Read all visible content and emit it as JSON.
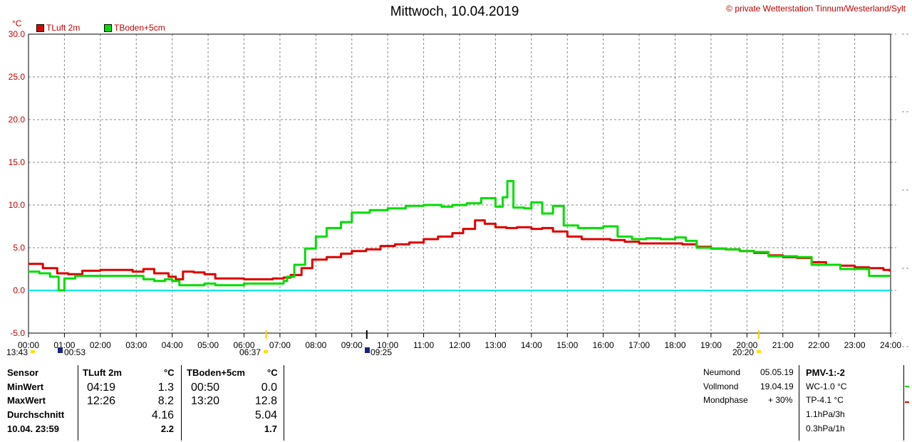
{
  "title": "Mittwoch, 10.04.2019",
  "copyright": "© private Wetterstation Tinnum/Westerland/Sylt",
  "unit": "°C",
  "legend": [
    {
      "name": "TLuft 2m",
      "color": "#dd0000"
    },
    {
      "name": "TBoden+5cm",
      "color": "#00dd00"
    }
  ],
  "chart_data": {
    "type": "line",
    "title": "Mittwoch, 10.04.2019",
    "ylabel": "°C",
    "ylim": [
      -5.0,
      30.0
    ],
    "yticks": [
      "30.0",
      "25.0",
      "20.0",
      "15.0",
      "10.0",
      "5.0",
      "0.0",
      "-5.0"
    ],
    "xlim": [
      0,
      24
    ],
    "xticks": [
      "00:00",
      "01:00",
      "02:00",
      "03:00",
      "04:00",
      "05:00",
      "06:00",
      "07:00",
      "08:00",
      "09:00",
      "10:00",
      "11:00",
      "12:00",
      "13:00",
      "14:00",
      "15:00",
      "16:00",
      "17:00",
      "18:00",
      "19:00",
      "20:00",
      "21:00",
      "22:00",
      "23:00",
      "24:00"
    ],
    "grid": true,
    "reference_line": {
      "y": 0.0,
      "color": "#00e5e5"
    },
    "series": [
      {
        "name": "TLuft 2m",
        "color": "#dd0000",
        "points": [
          [
            0,
            3.1
          ],
          [
            0.4,
            2.6
          ],
          [
            0.8,
            2.0
          ],
          [
            1.1,
            1.9
          ],
          [
            1.5,
            2.3
          ],
          [
            2.0,
            2.4
          ],
          [
            2.5,
            2.4
          ],
          [
            2.9,
            2.2
          ],
          [
            3.2,
            2.5
          ],
          [
            3.5,
            2.0
          ],
          [
            3.9,
            1.6
          ],
          [
            4.1,
            1.3
          ],
          [
            4.3,
            2.2
          ],
          [
            4.6,
            2.1
          ],
          [
            4.9,
            1.9
          ],
          [
            5.2,
            1.4
          ],
          [
            5.6,
            1.4
          ],
          [
            6.0,
            1.3
          ],
          [
            6.4,
            1.3
          ],
          [
            6.8,
            1.4
          ],
          [
            7.1,
            1.5
          ],
          [
            7.3,
            1.8
          ],
          [
            7.6,
            2.6
          ],
          [
            7.9,
            3.6
          ],
          [
            8.3,
            3.9
          ],
          [
            8.7,
            4.3
          ],
          [
            9.0,
            4.6
          ],
          [
            9.4,
            4.8
          ],
          [
            9.8,
            5.2
          ],
          [
            10.2,
            5.4
          ],
          [
            10.6,
            5.6
          ],
          [
            11.0,
            6.0
          ],
          [
            11.4,
            6.3
          ],
          [
            11.8,
            6.7
          ],
          [
            12.1,
            7.2
          ],
          [
            12.43,
            8.2
          ],
          [
            12.7,
            7.8
          ],
          [
            13.0,
            7.4
          ],
          [
            13.3,
            7.3
          ],
          [
            13.6,
            7.4
          ],
          [
            14.0,
            7.2
          ],
          [
            14.3,
            7.3
          ],
          [
            14.6,
            6.9
          ],
          [
            15.0,
            6.3
          ],
          [
            15.4,
            6.0
          ],
          [
            15.8,
            6.0
          ],
          [
            16.2,
            5.9
          ],
          [
            16.6,
            5.7
          ],
          [
            17.0,
            5.5
          ],
          [
            17.4,
            5.5
          ],
          [
            17.8,
            5.5
          ],
          [
            18.2,
            5.4
          ],
          [
            18.6,
            5.1
          ],
          [
            19.0,
            4.9
          ],
          [
            19.4,
            4.8
          ],
          [
            19.8,
            4.6
          ],
          [
            20.2,
            4.4
          ],
          [
            20.6,
            4.1
          ],
          [
            21.0,
            3.9
          ],
          [
            21.4,
            3.8
          ],
          [
            21.8,
            3.3
          ],
          [
            22.2,
            3.0
          ],
          [
            22.6,
            2.9
          ],
          [
            23.0,
            2.7
          ],
          [
            23.4,
            2.6
          ],
          [
            23.8,
            2.4
          ],
          [
            23.98,
            2.2
          ]
        ]
      },
      {
        "name": "TBoden+5cm",
        "color": "#00dd00",
        "points": [
          [
            0,
            2.2
          ],
          [
            0.3,
            2.0
          ],
          [
            0.6,
            1.6
          ],
          [
            0.84,
            0.0
          ],
          [
            1.0,
            1.4
          ],
          [
            1.3,
            1.7
          ],
          [
            1.7,
            1.7
          ],
          [
            2.2,
            1.7
          ],
          [
            2.7,
            1.7
          ],
          [
            3.0,
            1.7
          ],
          [
            3.2,
            1.3
          ],
          [
            3.5,
            1.1
          ],
          [
            3.8,
            1.3
          ],
          [
            4.0,
            1.1
          ],
          [
            4.2,
            0.6
          ],
          [
            4.6,
            0.6
          ],
          [
            4.9,
            0.8
          ],
          [
            5.2,
            0.6
          ],
          [
            5.6,
            0.6
          ],
          [
            6.0,
            0.8
          ],
          [
            6.4,
            0.8
          ],
          [
            6.8,
            0.8
          ],
          [
            7.1,
            1.1
          ],
          [
            7.2,
            1.6
          ],
          [
            7.4,
            3.0
          ],
          [
            7.7,
            4.9
          ],
          [
            8.0,
            6.3
          ],
          [
            8.3,
            7.3
          ],
          [
            8.7,
            8.0
          ],
          [
            9.0,
            9.1
          ],
          [
            9.5,
            9.4
          ],
          [
            10.0,
            9.6
          ],
          [
            10.5,
            9.9
          ],
          [
            11.0,
            10.0
          ],
          [
            11.5,
            9.8
          ],
          [
            11.8,
            10.0
          ],
          [
            12.2,
            10.2
          ],
          [
            12.6,
            10.8
          ],
          [
            13.0,
            9.8
          ],
          [
            13.2,
            10.9
          ],
          [
            13.33,
            12.8
          ],
          [
            13.5,
            9.7
          ],
          [
            13.8,
            9.6
          ],
          [
            14.0,
            10.3
          ],
          [
            14.3,
            9.0
          ],
          [
            14.6,
            9.9
          ],
          [
            14.9,
            7.6
          ],
          [
            15.3,
            7.3
          ],
          [
            15.6,
            7.3
          ],
          [
            16.0,
            7.5
          ],
          [
            16.4,
            6.3
          ],
          [
            16.8,
            6.0
          ],
          [
            17.2,
            6.1
          ],
          [
            17.6,
            6.0
          ],
          [
            18.0,
            6.2
          ],
          [
            18.3,
            5.8
          ],
          [
            18.6,
            5.0
          ],
          [
            19.0,
            4.9
          ],
          [
            19.4,
            4.8
          ],
          [
            19.8,
            4.6
          ],
          [
            20.2,
            4.5
          ],
          [
            20.6,
            4.0
          ],
          [
            21.0,
            4.0
          ],
          [
            21.4,
            3.9
          ],
          [
            21.8,
            3.0
          ],
          [
            22.2,
            3.0
          ],
          [
            22.6,
            2.5
          ],
          [
            23.0,
            2.5
          ],
          [
            23.4,
            1.7
          ],
          [
            23.98,
            1.7
          ]
        ]
      }
    ]
  },
  "markers": {
    "sunrise_time": "06:37",
    "sunset_time": "20:20",
    "moonrise_time": "09:25",
    "moonset_time": "00:53",
    "sun_hours": "13:43"
  },
  "stats": {
    "headers": {
      "sensor": "Sensor",
      "s1": "TLuft 2m",
      "s2": "TBoden+5cm",
      "u1": "°C",
      "u2": "°C"
    },
    "rows": [
      {
        "label": "MinWert",
        "t1": "04:19",
        "v1": "1.3",
        "t2": "00:50",
        "v2": "0.0"
      },
      {
        "label": "MaxWert",
        "t1": "12:26",
        "v1": "8.2",
        "t2": "13:20",
        "v2": "12.8"
      },
      {
        "label": "Durchschnitt",
        "t1": "",
        "v1": "4.16",
        "t2": "",
        "v2": "5.04"
      },
      {
        "label": "10.04. 23:59",
        "t1": "",
        "v1": "2.2",
        "t2": "",
        "v2": "1.7"
      }
    ]
  },
  "moon": {
    "rows": [
      {
        "label": "Neumond",
        "value": "05.05.19"
      },
      {
        "label": "Vollmond",
        "value": "19.04.19"
      },
      {
        "label": "Mondphase",
        "value": "+ 30%"
      }
    ]
  },
  "misc": {
    "pmv": "PMV-1:-2",
    "wc": "WC-1.0 °C",
    "tp": "TP-4.1 °C",
    "p3h": "1.1hPa/3h",
    "p1h": "0.3hPa/1h"
  }
}
